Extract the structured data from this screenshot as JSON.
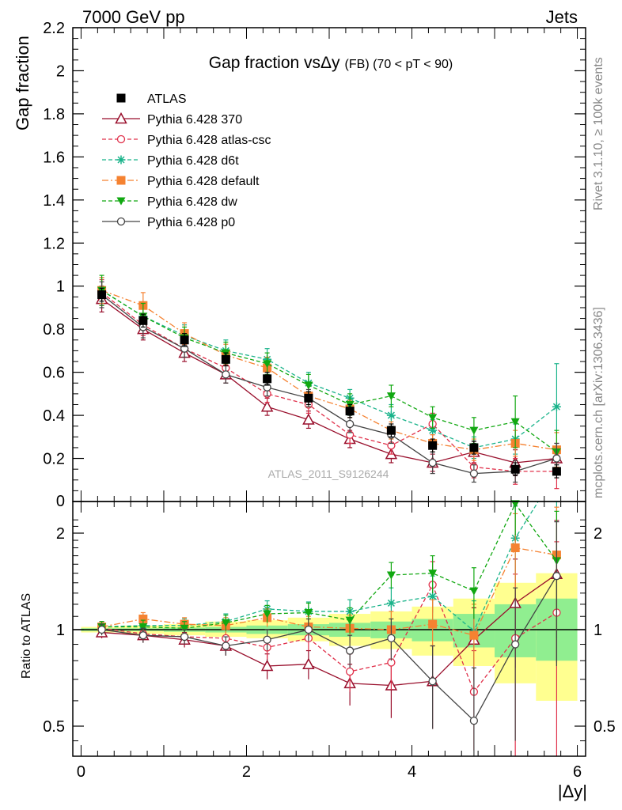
{
  "header": {
    "left": "7000 GeV pp",
    "right": "Jets"
  },
  "side_labels": {
    "rivet": "Rivet 3.1.10, ≥ 100k events",
    "mcplots": "mcplots.cern.ch [arXiv:1306.3436]"
  },
  "chart_data": [
    {
      "type": "line",
      "panel": "main",
      "title": "Gap fraction vsΔy",
      "title_suffix": "(FB) (70 < pT <  90)",
      "ylabel": "Gap fraction",
      "xlim": [
        -0.1,
        6.1
      ],
      "ylim": [
        0,
        2.2
      ],
      "y_ticks": [
        "0",
        "0.2",
        "0.4",
        "0.6",
        "0.8",
        "1",
        "1.2",
        "1.4",
        "1.6",
        "1.8",
        "2",
        "2.2"
      ],
      "watermark": "ATLAS_2011_S9126244",
      "x": [
        0.25,
        0.75,
        1.25,
        1.75,
        2.25,
        2.75,
        3.25,
        3.75,
        4.25,
        4.75,
        5.25,
        5.75
      ],
      "series": [
        {
          "name": "ATLAS",
          "color": "#000000",
          "marker": "square-filled",
          "line": "none",
          "values": [
            0.96,
            0.84,
            0.75,
            0.66,
            0.57,
            0.48,
            0.42,
            0.33,
            0.26,
            0.25,
            0.15,
            0.14
          ],
          "err": [
            0.03,
            0.03,
            0.03,
            0.03,
            0.03,
            0.03,
            0.03,
            0.03,
            0.03,
            0.03,
            0.03,
            0.03
          ]
        },
        {
          "name": "Pythia 6.428 370",
          "color": "#990f2c",
          "marker": "triangle-open",
          "line": "solid",
          "values": [
            0.94,
            0.8,
            0.69,
            0.59,
            0.44,
            0.38,
            0.29,
            0.22,
            0.18,
            0.23,
            0.18,
            0.2
          ],
          "err": [
            0.06,
            0.05,
            0.04,
            0.04,
            0.04,
            0.04,
            0.04,
            0.04,
            0.04,
            0.05,
            0.06,
            0.07
          ]
        },
        {
          "name": "Pythia 6.428 atlas-csc",
          "color": "#e0304a",
          "marker": "circle-open",
          "line": "dashed",
          "values": [
            0.97,
            0.82,
            0.71,
            0.62,
            0.5,
            0.45,
            0.31,
            0.26,
            0.36,
            0.16,
            0.14,
            0.14
          ],
          "err": [
            0.06,
            0.05,
            0.04,
            0.04,
            0.04,
            0.04,
            0.04,
            0.04,
            0.05,
            0.05,
            0.06,
            0.08
          ]
        },
        {
          "name": "Pythia 6.428 d6t",
          "color": "#19b38a",
          "marker": "star",
          "line": "dashed",
          "values": [
            0.98,
            0.86,
            0.77,
            0.7,
            0.66,
            0.55,
            0.48,
            0.4,
            0.33,
            0.25,
            0.29,
            0.44
          ],
          "err": [
            0.06,
            0.05,
            0.05,
            0.05,
            0.05,
            0.05,
            0.04,
            0.05,
            0.05,
            0.05,
            0.07,
            0.2
          ]
        },
        {
          "name": "Pythia 6.428 default",
          "color": "#f58231",
          "marker": "square-filled",
          "line": "dashdot",
          "values": [
            0.98,
            0.91,
            0.78,
            0.68,
            0.62,
            0.49,
            0.43,
            0.33,
            0.27,
            0.24,
            0.27,
            0.24
          ],
          "err": [
            0.06,
            0.06,
            0.05,
            0.05,
            0.05,
            0.05,
            0.04,
            0.04,
            0.04,
            0.05,
            0.06,
            0.08
          ]
        },
        {
          "name": "Pythia 6.428 dw",
          "color": "#11a811",
          "marker": "triangle-down-filled",
          "line": "dashed",
          "values": [
            0.98,
            0.86,
            0.76,
            0.69,
            0.64,
            0.54,
            0.45,
            0.49,
            0.39,
            0.33,
            0.37,
            0.23
          ],
          "err": [
            0.07,
            0.06,
            0.05,
            0.05,
            0.05,
            0.05,
            0.05,
            0.05,
            0.05,
            0.06,
            0.12,
            0.1
          ]
        },
        {
          "name": "Pythia 6.428 p0",
          "color": "#444444",
          "marker": "circle-open",
          "line": "solid",
          "values": [
            0.96,
            0.81,
            0.71,
            0.59,
            0.53,
            0.48,
            0.36,
            0.31,
            0.18,
            0.13,
            0.14,
            0.2
          ],
          "err": [
            0.06,
            0.05,
            0.04,
            0.04,
            0.04,
            0.04,
            0.04,
            0.04,
            0.05,
            0.04,
            0.05,
            0.07
          ]
        }
      ]
    },
    {
      "type": "line",
      "panel": "ratio",
      "ylabel": "Ratio to ATLAS",
      "xlabel": "|Δy|",
      "log_y": true,
      "ylim": [
        0.4,
        2.3
      ],
      "x_ticks": [
        "0",
        "2",
        "4",
        "6"
      ],
      "y_ticks": [
        "0.5",
        "1",
        "2"
      ],
      "x": [
        0.25,
        0.75,
        1.25,
        1.75,
        2.25,
        2.75,
        3.25,
        3.75,
        4.25,
        4.75,
        5.25,
        5.75
      ],
      "band_inner": [
        [
          0.99,
          1.01
        ],
        [
          0.99,
          1.01
        ],
        [
          0.985,
          1.015
        ],
        [
          0.98,
          1.02
        ],
        [
          0.97,
          1.03
        ],
        [
          0.96,
          1.04
        ],
        [
          0.95,
          1.05
        ],
        [
          0.94,
          1.06
        ],
        [
          0.92,
          1.08
        ],
        [
          0.88,
          1.12
        ],
        [
          0.82,
          1.2
        ],
        [
          0.8,
          1.25
        ]
      ],
      "band_outer": [
        [
          0.98,
          1.02
        ],
        [
          0.97,
          1.03
        ],
        [
          0.96,
          1.04
        ],
        [
          0.95,
          1.06
        ],
        [
          0.94,
          1.07
        ],
        [
          0.92,
          1.09
        ],
        [
          0.89,
          1.12
        ],
        [
          0.87,
          1.14
        ],
        [
          0.83,
          1.18
        ],
        [
          0.77,
          1.25
        ],
        [
          0.68,
          1.4
        ],
        [
          0.6,
          1.5
        ]
      ],
      "series": [
        {
          "name": "Pythia 6.428 370",
          "values": [
            0.98,
            0.96,
            0.93,
            0.89,
            0.77,
            0.78,
            0.68,
            0.67,
            0.69,
            0.93,
            1.21,
            1.49
          ],
          "err": [
            0.04,
            0.05,
            0.05,
            0.06,
            0.07,
            0.08,
            0.1,
            0.14,
            0.2,
            0.24,
            0.45,
            0.7
          ]
        },
        {
          "name": "Pythia 6.428 atlas-csc",
          "values": [
            1.01,
            0.97,
            0.95,
            0.94,
            0.88,
            0.94,
            0.74,
            0.79,
            1.38,
            0.64,
            0.94,
            1.13
          ],
          "err": [
            0.04,
            0.05,
            0.05,
            0.06,
            0.07,
            0.08,
            0.1,
            0.14,
            0.25,
            0.22,
            0.55,
            0.75
          ]
        },
        {
          "name": "Pythia 6.428 d6t",
          "values": [
            1.02,
            1.03,
            1.03,
            1.06,
            1.16,
            1.14,
            1.14,
            1.21,
            1.27,
            0.99,
            1.93,
            3.1
          ],
          "err": [
            0.04,
            0.05,
            0.05,
            0.06,
            0.07,
            0.08,
            0.1,
            0.14,
            0.2,
            0.24,
            0.5,
            0.9
          ]
        },
        {
          "name": "Pythia 6.428 default",
          "values": [
            1.02,
            1.08,
            1.04,
            1.03,
            1.09,
            1.02,
            1.01,
            1.0,
            1.04,
            0.96,
            1.8,
            1.71
          ],
          "err": [
            0.04,
            0.05,
            0.05,
            0.06,
            0.07,
            0.08,
            0.1,
            0.14,
            0.2,
            0.24,
            0.5,
            0.7
          ]
        },
        {
          "name": "Pythia 6.428 dw",
          "values": [
            1.02,
            1.02,
            1.01,
            1.05,
            1.12,
            1.13,
            1.07,
            1.48,
            1.5,
            1.32,
            2.47,
            1.64
          ],
          "err": [
            0.04,
            0.05,
            0.05,
            0.06,
            0.07,
            0.08,
            0.1,
            0.14,
            0.2,
            0.24,
            0.5,
            0.7
          ]
        },
        {
          "name": "Pythia 6.428 p0",
          "values": [
            1.0,
            0.96,
            0.95,
            0.89,
            0.93,
            1.0,
            0.86,
            0.94,
            0.69,
            0.52,
            0.9,
            1.47
          ],
          "err": [
            0.04,
            0.05,
            0.05,
            0.06,
            0.07,
            0.08,
            0.1,
            0.14,
            0.2,
            0.24,
            0.45,
            0.7
          ]
        }
      ]
    }
  ]
}
